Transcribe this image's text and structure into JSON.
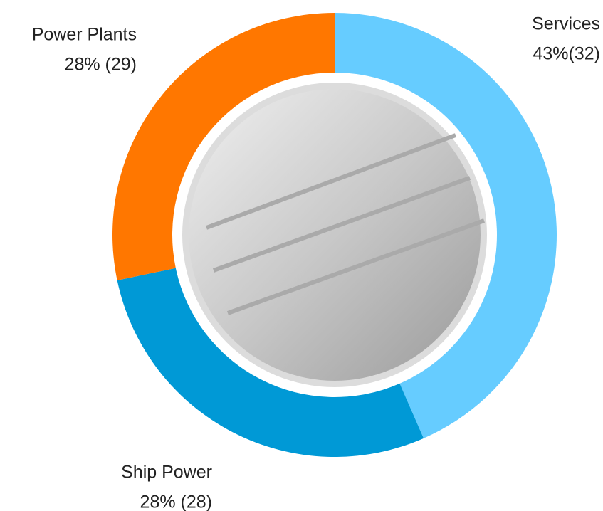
{
  "chart_data": {
    "type": "pie",
    "donut": true,
    "categories": [
      "Services",
      "Ship Power",
      "Power Plants"
    ],
    "values": [
      43,
      28,
      28
    ],
    "value_labels": [
      "43%(32)",
      "28% (28)",
      "28% (29)"
    ],
    "colors": [
      "#66ccff",
      "#0099d6",
      "#ff7700"
    ]
  }
}
